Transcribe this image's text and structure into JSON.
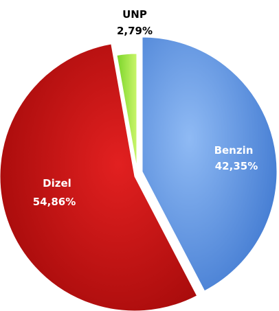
{
  "chart_data": {
    "type": "pie",
    "title": "",
    "legend": "none",
    "slices": [
      {
        "label": "Benzin",
        "value_text": "42,35%",
        "value": 42.35,
        "color": "#5b97e8",
        "label_color": "#ffffff"
      },
      {
        "label": "Dizel",
        "value_text": "54,86%",
        "value": 54.86,
        "color": "#c81212",
        "label_color": "#ffffff"
      },
      {
        "label": "UNP",
        "value_text": "2,79%",
        "value": 2.79,
        "color": "#a8f04a",
        "label_color": "#000000"
      }
    ]
  }
}
